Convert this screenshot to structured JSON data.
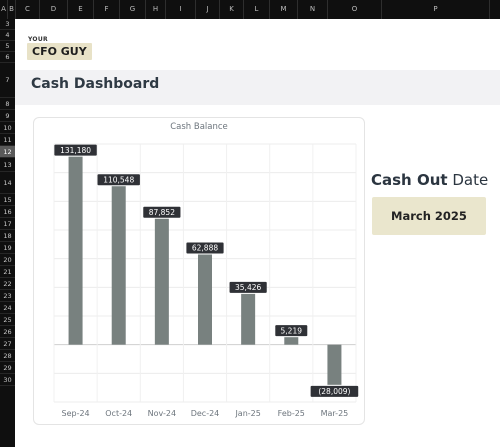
{
  "spreadsheet": {
    "columns": [
      "A",
      "B",
      "C",
      "D",
      "E",
      "F",
      "G",
      "H",
      "I",
      "J",
      "K",
      "L",
      "M",
      "N",
      "O",
      "P"
    ],
    "rows": [
      "3",
      "4",
      "5",
      "6",
      "7",
      "8",
      "9",
      "10",
      "11",
      "12",
      "13",
      "14",
      "15",
      "16",
      "17",
      "18",
      "19",
      "20",
      "21",
      "22",
      "23",
      "24",
      "25",
      "26",
      "27",
      "28",
      "29",
      "30"
    ],
    "active_row": "12"
  },
  "brand": {
    "small": "YOUR",
    "name": "CFO GUY"
  },
  "page": {
    "title": "Cash Dashboard"
  },
  "cash_out": {
    "label_bold": "Cash Out",
    "label_rest": " Date",
    "value": "March 2025",
    "box_color": "#eae6cd"
  },
  "chart_data": {
    "type": "bar",
    "title": "Cash Balance",
    "categories": [
      "Sep-24",
      "Oct-24",
      "Nov-24",
      "Dec-24",
      "Jan-25",
      "Feb-25",
      "Mar-25"
    ],
    "values": [
      131180,
      110548,
      87852,
      62888,
      35426,
      5219,
      -28009
    ],
    "data_labels": [
      "131,180",
      "110,548",
      "87,852",
      "62,888",
      "35,426",
      "5,219",
      "(28,009)"
    ],
    "ylim": [
      -40000,
      140000
    ],
    "grid": true,
    "legend": "none",
    "bar_color": "#78817f",
    "label_bg": "#2f3136"
  }
}
